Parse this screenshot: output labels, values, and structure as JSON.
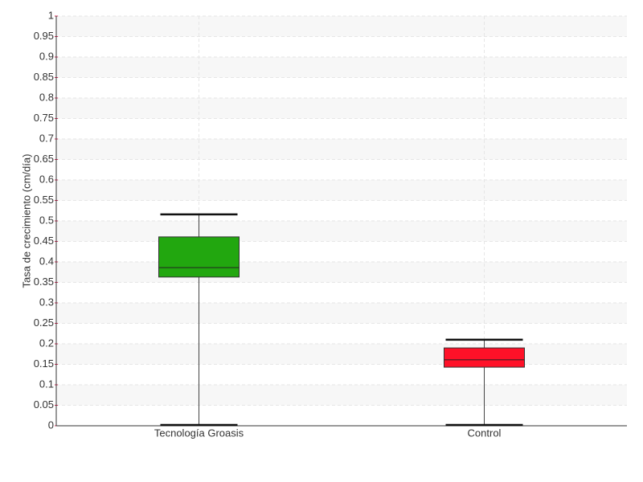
{
  "chart_data": {
    "type": "box",
    "y_label": "Tasa de crecimiento (cm/día)",
    "categories": [
      "Tecnología Groasis",
      "Control"
    ],
    "boxes": [
      {
        "min": 0,
        "q1": 0.363,
        "median": 0.386,
        "q3": 0.461,
        "max": 0.516,
        "color": "#22a70f"
      },
      {
        "min": 0,
        "q1": 0.143,
        "median": 0.161,
        "q3": 0.19,
        "max": 0.21,
        "color": "#ff1128"
      }
    ],
    "ylim": [
      0,
      1
    ],
    "yticks": [
      0,
      0.05,
      0.1,
      0.15,
      0.2,
      0.25,
      0.3,
      0.35,
      0.4,
      0.45,
      0.5,
      0.55,
      0.6,
      0.65,
      0.7,
      0.75,
      0.8,
      0.85,
      0.9,
      0.95,
      1
    ],
    "grid": true
  }
}
